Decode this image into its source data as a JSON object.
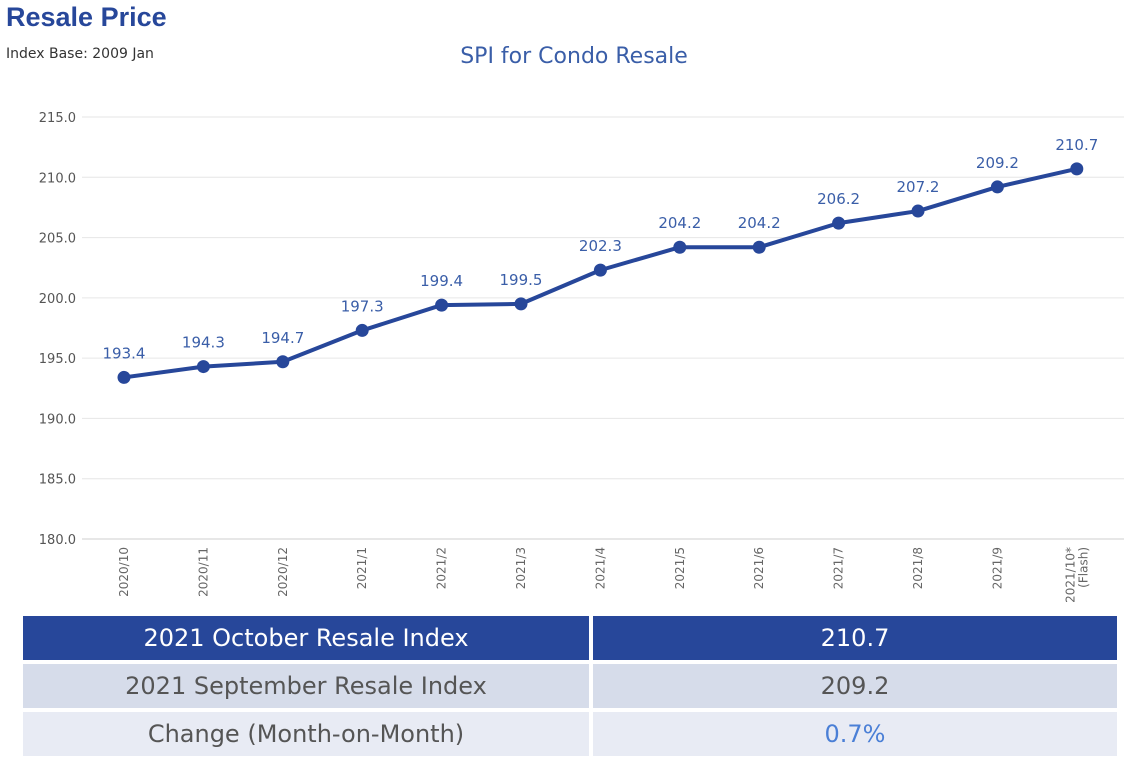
{
  "page": {
    "title": "Resale Price",
    "index_base": "Index Base: 2009 Jan"
  },
  "chart_data": {
    "type": "line",
    "title": "SPI for Condo Resale",
    "categories": [
      "2020/10",
      "2020/11",
      "2020/12",
      "2021/1",
      "2021/2",
      "2021/3",
      "2021/4",
      "2021/5",
      "2021/6",
      "2021/7",
      "2021/8",
      "2021/9",
      "2021/10*\n(Flash)"
    ],
    "values": [
      193.4,
      194.3,
      194.7,
      197.3,
      199.4,
      199.5,
      202.3,
      204.2,
      204.2,
      206.2,
      207.2,
      209.2,
      210.7
    ],
    "data_labels": [
      "193.4",
      "194.3",
      "194.7",
      "197.3",
      "199.4",
      "199.5",
      "202.3",
      "204.2",
      "204.2",
      "206.2",
      "207.2",
      "209.2",
      "210.7"
    ],
    "y_ticks": [
      "180.0",
      "185.0",
      "190.0",
      "195.0",
      "200.0",
      "205.0",
      "210.0",
      "215.0"
    ],
    "ylim": [
      180,
      215
    ],
    "grid": true,
    "xlabel": "",
    "ylabel": "",
    "line_color": "#27479a",
    "label_color": "#3a5ea8"
  },
  "table": {
    "rows": [
      {
        "label": "2021 October Resale Index",
        "value": "210.7"
      },
      {
        "label": "2021 September Resale Index",
        "value": "209.2"
      },
      {
        "label": "Change (Month-on-Month)",
        "value": "0.7%"
      }
    ]
  }
}
